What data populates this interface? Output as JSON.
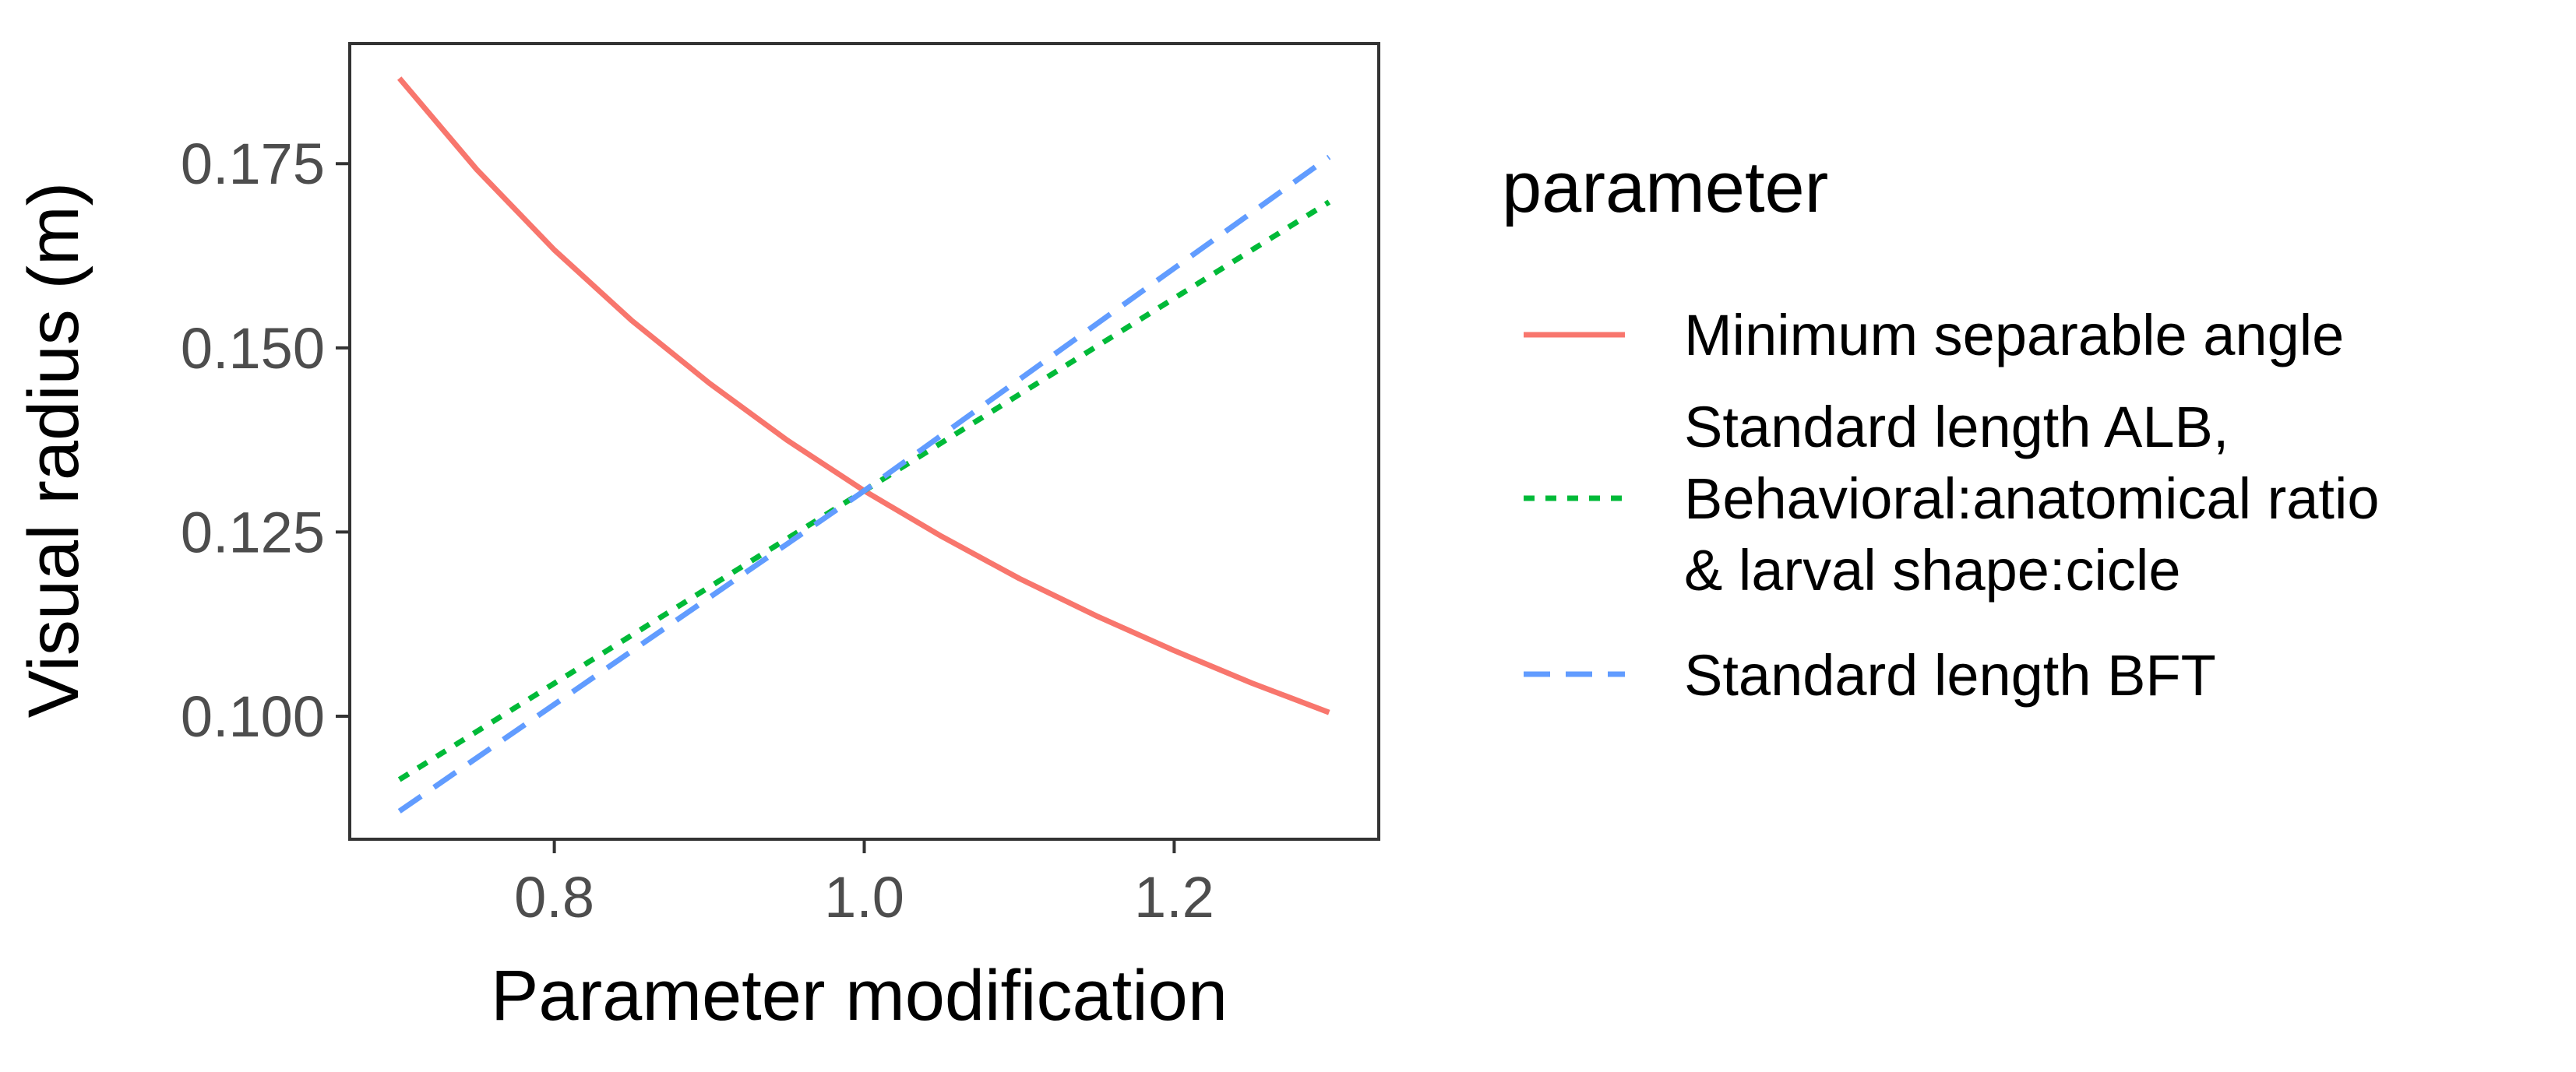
{
  "chart_data": {
    "type": "line",
    "xlabel": "Parameter modification",
    "ylabel": "Visual radius (m)",
    "xlim": [
      0.668,
      1.332
    ],
    "ylim": [
      0.0833,
      0.1913
    ],
    "x_ticks": [
      0.8,
      1.0,
      1.2
    ],
    "x_tick_labels": [
      "0.8",
      "1.0",
      "1.2"
    ],
    "y_ticks": [
      0.1,
      0.125,
      0.15,
      0.175
    ],
    "y_tick_labels": [
      "0.100",
      "0.125",
      "0.150",
      "0.175"
    ],
    "grid": false,
    "legend": {
      "title": "parameter",
      "position": "right"
    },
    "series": [
      {
        "name": "Minimum separable angle",
        "color": "#F8766D",
        "dash": "solid",
        "x": [
          0.7,
          0.75,
          0.8,
          0.85,
          0.9,
          0.95,
          1.0,
          1.05,
          1.1,
          1.15,
          1.2,
          1.25,
          1.3
        ],
        "values": [
          0.1866,
          0.1742,
          0.1633,
          0.1537,
          0.1452,
          0.1375,
          0.1306,
          0.1244,
          0.1187,
          0.1136,
          0.1089,
          0.1045,
          0.1005
        ]
      },
      {
        "name": "Standard length ALB,\nBehavioral:anatomical ratio\n& larval shape:cicle",
        "label_lines": [
          "Standard length ALB,",
          "Behavioral:anatomical ratio",
          "& larval shape:cicle"
        ],
        "color": "#00BA38",
        "dash": "dotted",
        "x": [
          0.7,
          1.0,
          1.3
        ],
        "values": [
          0.0914,
          0.1306,
          0.1698
        ]
      },
      {
        "name": "Standard length BFT",
        "color": "#619CFF",
        "dash": "dashed",
        "x": [
          0.7,
          1.0,
          1.3
        ],
        "values": [
          0.0871,
          0.1306,
          0.1759
        ]
      }
    ]
  }
}
